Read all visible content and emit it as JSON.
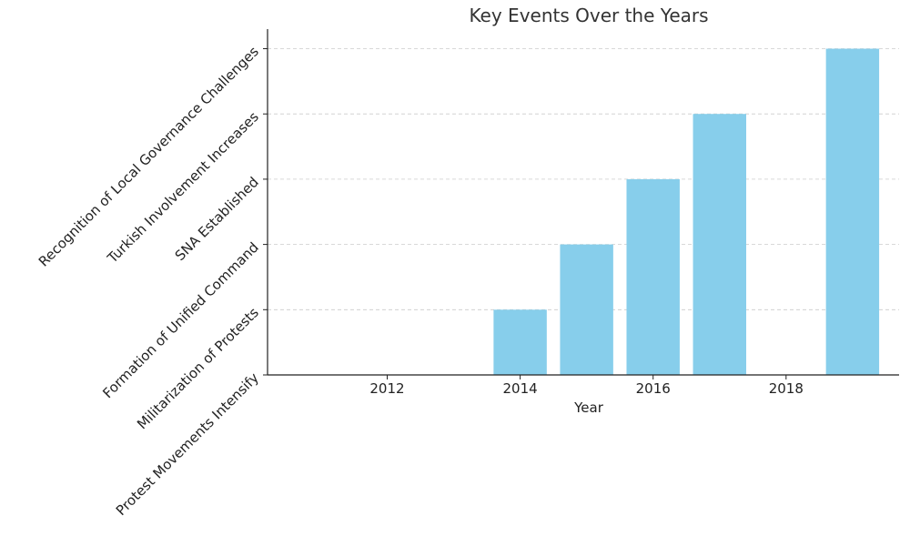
{
  "chart_data": {
    "type": "bar",
    "title": "Key Events Over the Years",
    "xlabel": "Year",
    "ylabel": "",
    "x": [
      2014,
      2015,
      2016,
      2017,
      2019
    ],
    "values": [
      1,
      2,
      3,
      4,
      5
    ],
    "xlim": [
      2010.2,
      2019.7
    ],
    "ylim": [
      0,
      5.3
    ],
    "x_ticks": [
      2012,
      2014,
      2016,
      2018
    ],
    "y_ticks": [
      0,
      1,
      2,
      3,
      4,
      5
    ],
    "y_tick_labels": [
      "Protest Movements Intensify",
      "Militarization of Protests",
      "Formation of Unified Command",
      "SNA Established",
      "Turkish Involvement Increases",
      "Recognition of Local Governance Challenges"
    ],
    "bar_color": "#87CEEB",
    "grid": "horizontal dashed",
    "legend": "none"
  }
}
